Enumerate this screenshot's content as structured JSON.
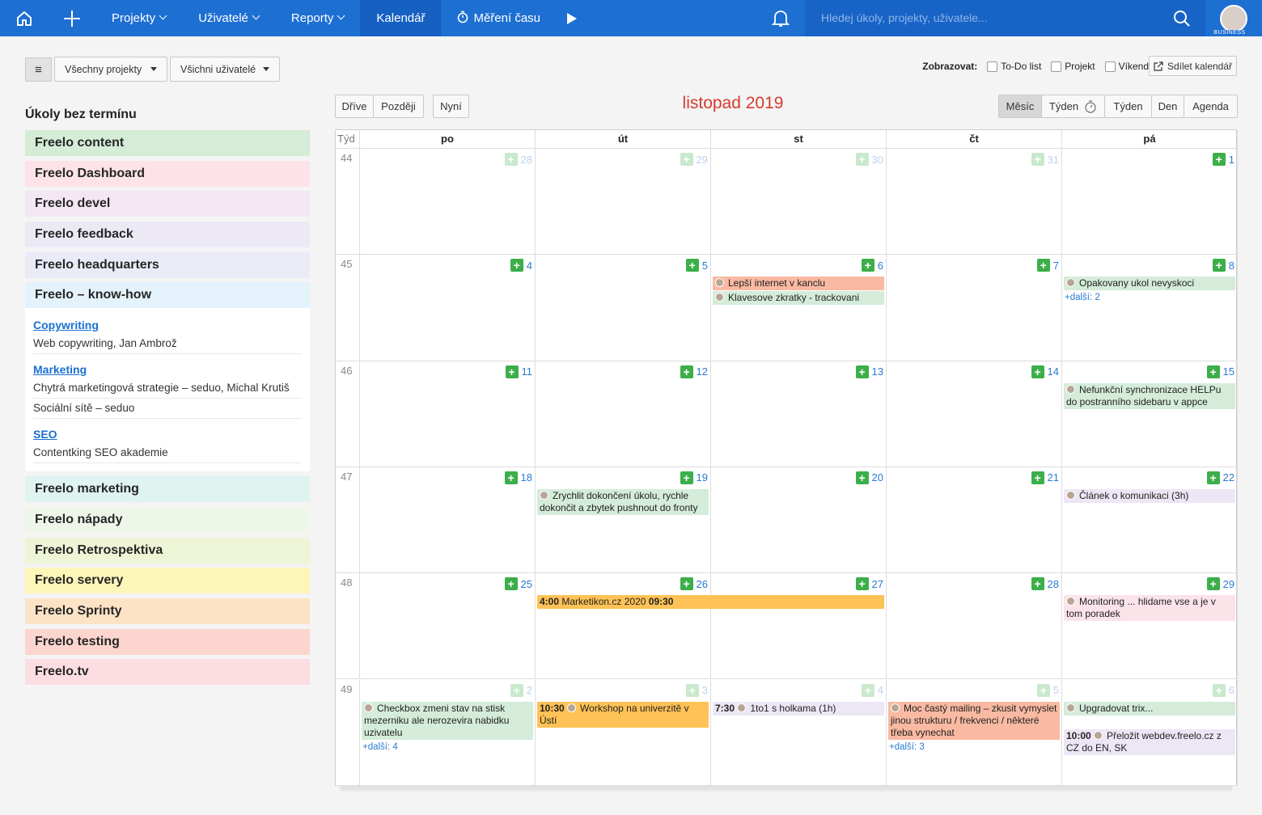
{
  "nav": {
    "items": [
      {
        "label": "Projekty",
        "dropdown": true
      },
      {
        "label": "Uživatelé",
        "dropdown": true
      },
      {
        "label": "Reporty",
        "dropdown": true
      },
      {
        "label": "Kalendář",
        "dropdown": false
      },
      {
        "label": "Měření času",
        "dropdown": false
      }
    ],
    "active": 3,
    "search_placeholder": "Hledej úkoly, projekty, uživatele...",
    "badge": "BUSINESS"
  },
  "toolbar": {
    "menu": "≡",
    "filters": [
      "Všechny projekty",
      "Všichni uživatelé"
    ],
    "show_label": "Zobrazovat:",
    "options": [
      "To-Do list",
      "Projekt",
      "Víkend"
    ],
    "share": "Sdílet kalendář"
  },
  "sidebar": {
    "title": "Úkoly bez termínu",
    "projects": [
      {
        "name": "Freelo content",
        "color": "#d5ecd7"
      },
      {
        "name": "Freelo Dashboard",
        "color": "#fde3e8"
      },
      {
        "name": "Freelo devel",
        "color": "#f3e7f4"
      },
      {
        "name": "Freelo feedback",
        "color": "#ece9f5"
      },
      {
        "name": "Freelo headquarters",
        "color": "#e9ebf7"
      },
      {
        "name": "Freelo – know-how",
        "color": "#e3f2fb",
        "groups": [
          {
            "title": "Copywriting",
            "tasks": [
              "Web copywriting, Jan Ambrož"
            ]
          },
          {
            "title": "Marketing",
            "tasks": [
              "Chytrá marketingová strategie – seduo, Michal Krutiš",
              "Sociální sítě – seduo"
            ]
          },
          {
            "title": "SEO",
            "tasks": [
              "Contentking SEO akademie"
            ]
          }
        ]
      },
      {
        "name": "Freelo marketing",
        "color": "#dff3f1"
      },
      {
        "name": "Freelo nápady",
        "color": "#eef6ea"
      },
      {
        "name": "Freelo Retrospektiva",
        "color": "#eef5d6"
      },
      {
        "name": "Freelo servery",
        "color": "#fdf6b9"
      },
      {
        "name": "Freelo Sprinty",
        "color": "#fde3c6"
      },
      {
        "name": "Freelo testing",
        "color": "#fdd5cf"
      },
      {
        "name": "Freelo.tv",
        "color": "#fcdde2"
      }
    ]
  },
  "calendar": {
    "prev": "Dříve",
    "next": "Později",
    "now": "Nyní",
    "title": "listopad 2019",
    "views": [
      "Měsíc",
      "Týden",
      "Týden",
      "Den",
      "Agenda"
    ],
    "active_view": 0,
    "week_header": "Týd",
    "days": [
      "po",
      "út",
      "st",
      "čt",
      "pá"
    ],
    "weeks": [
      {
        "number": 44,
        "days": [
          {
            "date": 28,
            "faded": true,
            "events": []
          },
          {
            "date": 29,
            "faded": true,
            "events": []
          },
          {
            "date": 30,
            "faded": true,
            "events": []
          },
          {
            "date": 31,
            "faded": true,
            "events": []
          },
          {
            "date": 1,
            "faded": false,
            "events": []
          }
        ]
      },
      {
        "number": 45,
        "days": [
          {
            "date": 4,
            "faded": false,
            "events": []
          },
          {
            "date": 5,
            "faded": false,
            "events": []
          },
          {
            "date": 6,
            "faded": false,
            "events": [
              {
                "text": "Lepší internet v kanclu",
                "color": "#f9b9a2"
              },
              {
                "text": "Klavesove zkratky - trackovani",
                "color": "#d4ecd9"
              }
            ]
          },
          {
            "date": 7,
            "faded": false,
            "events": []
          },
          {
            "date": 8,
            "faded": false,
            "events": [
              {
                "text": "Opakovany ukol nevyskoci",
                "color": "#d4ecd9"
              }
            ],
            "more": "+další: 2"
          }
        ]
      },
      {
        "number": 46,
        "days": [
          {
            "date": 11,
            "faded": false,
            "events": []
          },
          {
            "date": 12,
            "faded": false,
            "events": []
          },
          {
            "date": 13,
            "faded": false,
            "events": []
          },
          {
            "date": 14,
            "faded": false,
            "events": []
          },
          {
            "date": 15,
            "faded": false,
            "events": [
              {
                "text": "Nefunkční synchronizace HELPu do postranního sidebaru v appce",
                "color": "#d4ecd9"
              }
            ]
          }
        ]
      },
      {
        "number": 47,
        "days": [
          {
            "date": 18,
            "faded": false,
            "events": []
          },
          {
            "date": 19,
            "faded": false,
            "events": [
              {
                "text": "Zrychlit dokončení úkolu, rychle dokončit a zbytek pushnout do fronty",
                "color": "#d4ecd9"
              }
            ]
          },
          {
            "date": 20,
            "faded": false,
            "events": []
          },
          {
            "date": 21,
            "faded": false,
            "events": []
          },
          {
            "date": 22,
            "faded": false,
            "events": [
              {
                "text": "Článek o komunikaci (3h)",
                "color": "#ece6f5"
              }
            ]
          }
        ]
      },
      {
        "number": 48,
        "days": [
          {
            "date": 25,
            "faded": false,
            "events": []
          },
          {
            "date": 26,
            "faded": false,
            "events": [
              {
                "time": "4:00",
                "text": "Marketikon.cz 2020",
                "end": "09:30",
                "color": "#ffc256",
                "span": 2
              }
            ]
          },
          {
            "date": 27,
            "faded": false,
            "events": []
          },
          {
            "date": 28,
            "faded": false,
            "events": []
          },
          {
            "date": 29,
            "faded": false,
            "events": [
              {
                "text": "Monitoring ... hlidame vse a je v tom poradek",
                "color": "#fbe3ea"
              }
            ]
          }
        ]
      },
      {
        "number": 49,
        "days": [
          {
            "date": 2,
            "faded": true,
            "events": [
              {
                "text": "Checkbox zmeni stav na stisk mezerniku ale nerozevira nabidku uzivatelu",
                "color": "#d4ecd9"
              }
            ],
            "more": "+další: 4"
          },
          {
            "date": 3,
            "faded": true,
            "events": [
              {
                "time": "10:30",
                "text": "Workshop na univerzitě v Ústí",
                "color": "#ffc256"
              }
            ]
          },
          {
            "date": 4,
            "faded": true,
            "events": [
              {
                "time": "7:30",
                "text": "1to1 s holkama (1h)",
                "color": "#ece6f5"
              }
            ]
          },
          {
            "date": 5,
            "faded": true,
            "events": [
              {
                "text": "Moc častý mailing – zkusit vymyslet jinou strukturu / frekvenci / některé třeba vynechat",
                "color": "#f9b9a2"
              }
            ],
            "more": "+další: 3"
          },
          {
            "date": 6,
            "faded": true,
            "events": [
              {
                "text": "Upgradovat trix...",
                "color": "#d4ecd9"
              },
              {
                "time": "10:00",
                "text": "Přeložit webdev.freelo.cz z CZ do EN, SK",
                "color": "#ece6f5",
                "gap": true
              }
            ]
          }
        ]
      }
    ]
  }
}
